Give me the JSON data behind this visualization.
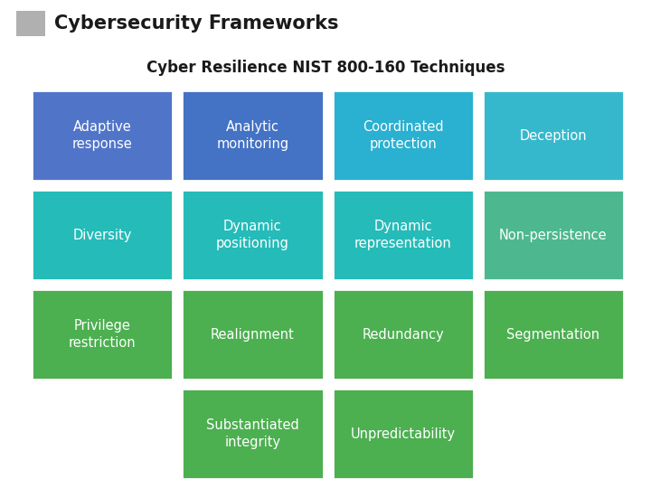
{
  "title": "Cybersecurity Frameworks",
  "subtitle": "Cyber Resilience NIST 800-160 Techniques",
  "background_color": "#ffffff",
  "header_square_color": "#b0b0b0",
  "grid": [
    [
      {
        "text": "Adaptive\nresponse",
        "color": "#5075c8"
      },
      {
        "text": "Analytic\nmonitoring",
        "color": "#4472c4"
      },
      {
        "text": "Coordinated\nprotection",
        "color": "#2ab0d0"
      },
      {
        "text": "Deception",
        "color": "#35b8cc"
      }
    ],
    [
      {
        "text": "Diversity",
        "color": "#25bbb8"
      },
      {
        "text": "Dynamic\npositioning",
        "color": "#25bbb8"
      },
      {
        "text": "Dynamic\nrepresentation",
        "color": "#25bbb8"
      },
      {
        "text": "Non-persistence",
        "color": "#4db890"
      }
    ],
    [
      {
        "text": "Privilege\nrestriction",
        "color": "#4caf50"
      },
      {
        "text": "Realignment",
        "color": "#4caf50"
      },
      {
        "text": "Redundancy",
        "color": "#4caf50"
      },
      {
        "text": "Segmentation",
        "color": "#4caf50"
      }
    ],
    [
      {
        "text": "",
        "color": null
      },
      {
        "text": "Substantiated\nintegrity",
        "color": "#4caf50"
      },
      {
        "text": "Unpredictability",
        "color": "#4caf50"
      },
      {
        "text": "",
        "color": null
      }
    ]
  ],
  "cell_text_color": "#ffffff",
  "title_color": "#1a1a1a",
  "subtitle_color": "#1a1a1a",
  "title_fontsize": 15,
  "subtitle_fontsize": 12,
  "cell_fontsize": 10.5
}
